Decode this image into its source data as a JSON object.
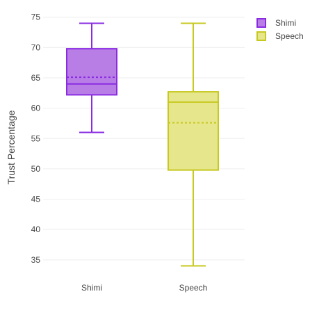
{
  "chart_data": {
    "type": "box",
    "title": "",
    "xlabel": "",
    "ylabel": "Trust Percentage",
    "ylim": [
      32,
      76
    ],
    "yticks": [
      35,
      40,
      45,
      50,
      55,
      60,
      65,
      70,
      75
    ],
    "categories": [
      "Shimi",
      "Speech"
    ],
    "grid": true,
    "legend_position": "top-right",
    "series": [
      {
        "name": "Shimi",
        "color": "#8a2be2",
        "fill": "#b97ee6",
        "min": 56,
        "q1": 62.2,
        "median": 64,
        "mean": 65.1,
        "q3": 69.8,
        "max": 74
      },
      {
        "name": "Speech",
        "color": "#c7c91f",
        "fill": "#e6e68c",
        "min": 34,
        "q1": 49.8,
        "median": 61,
        "mean": 57.6,
        "q3": 62.7,
        "max": 74
      }
    ]
  }
}
